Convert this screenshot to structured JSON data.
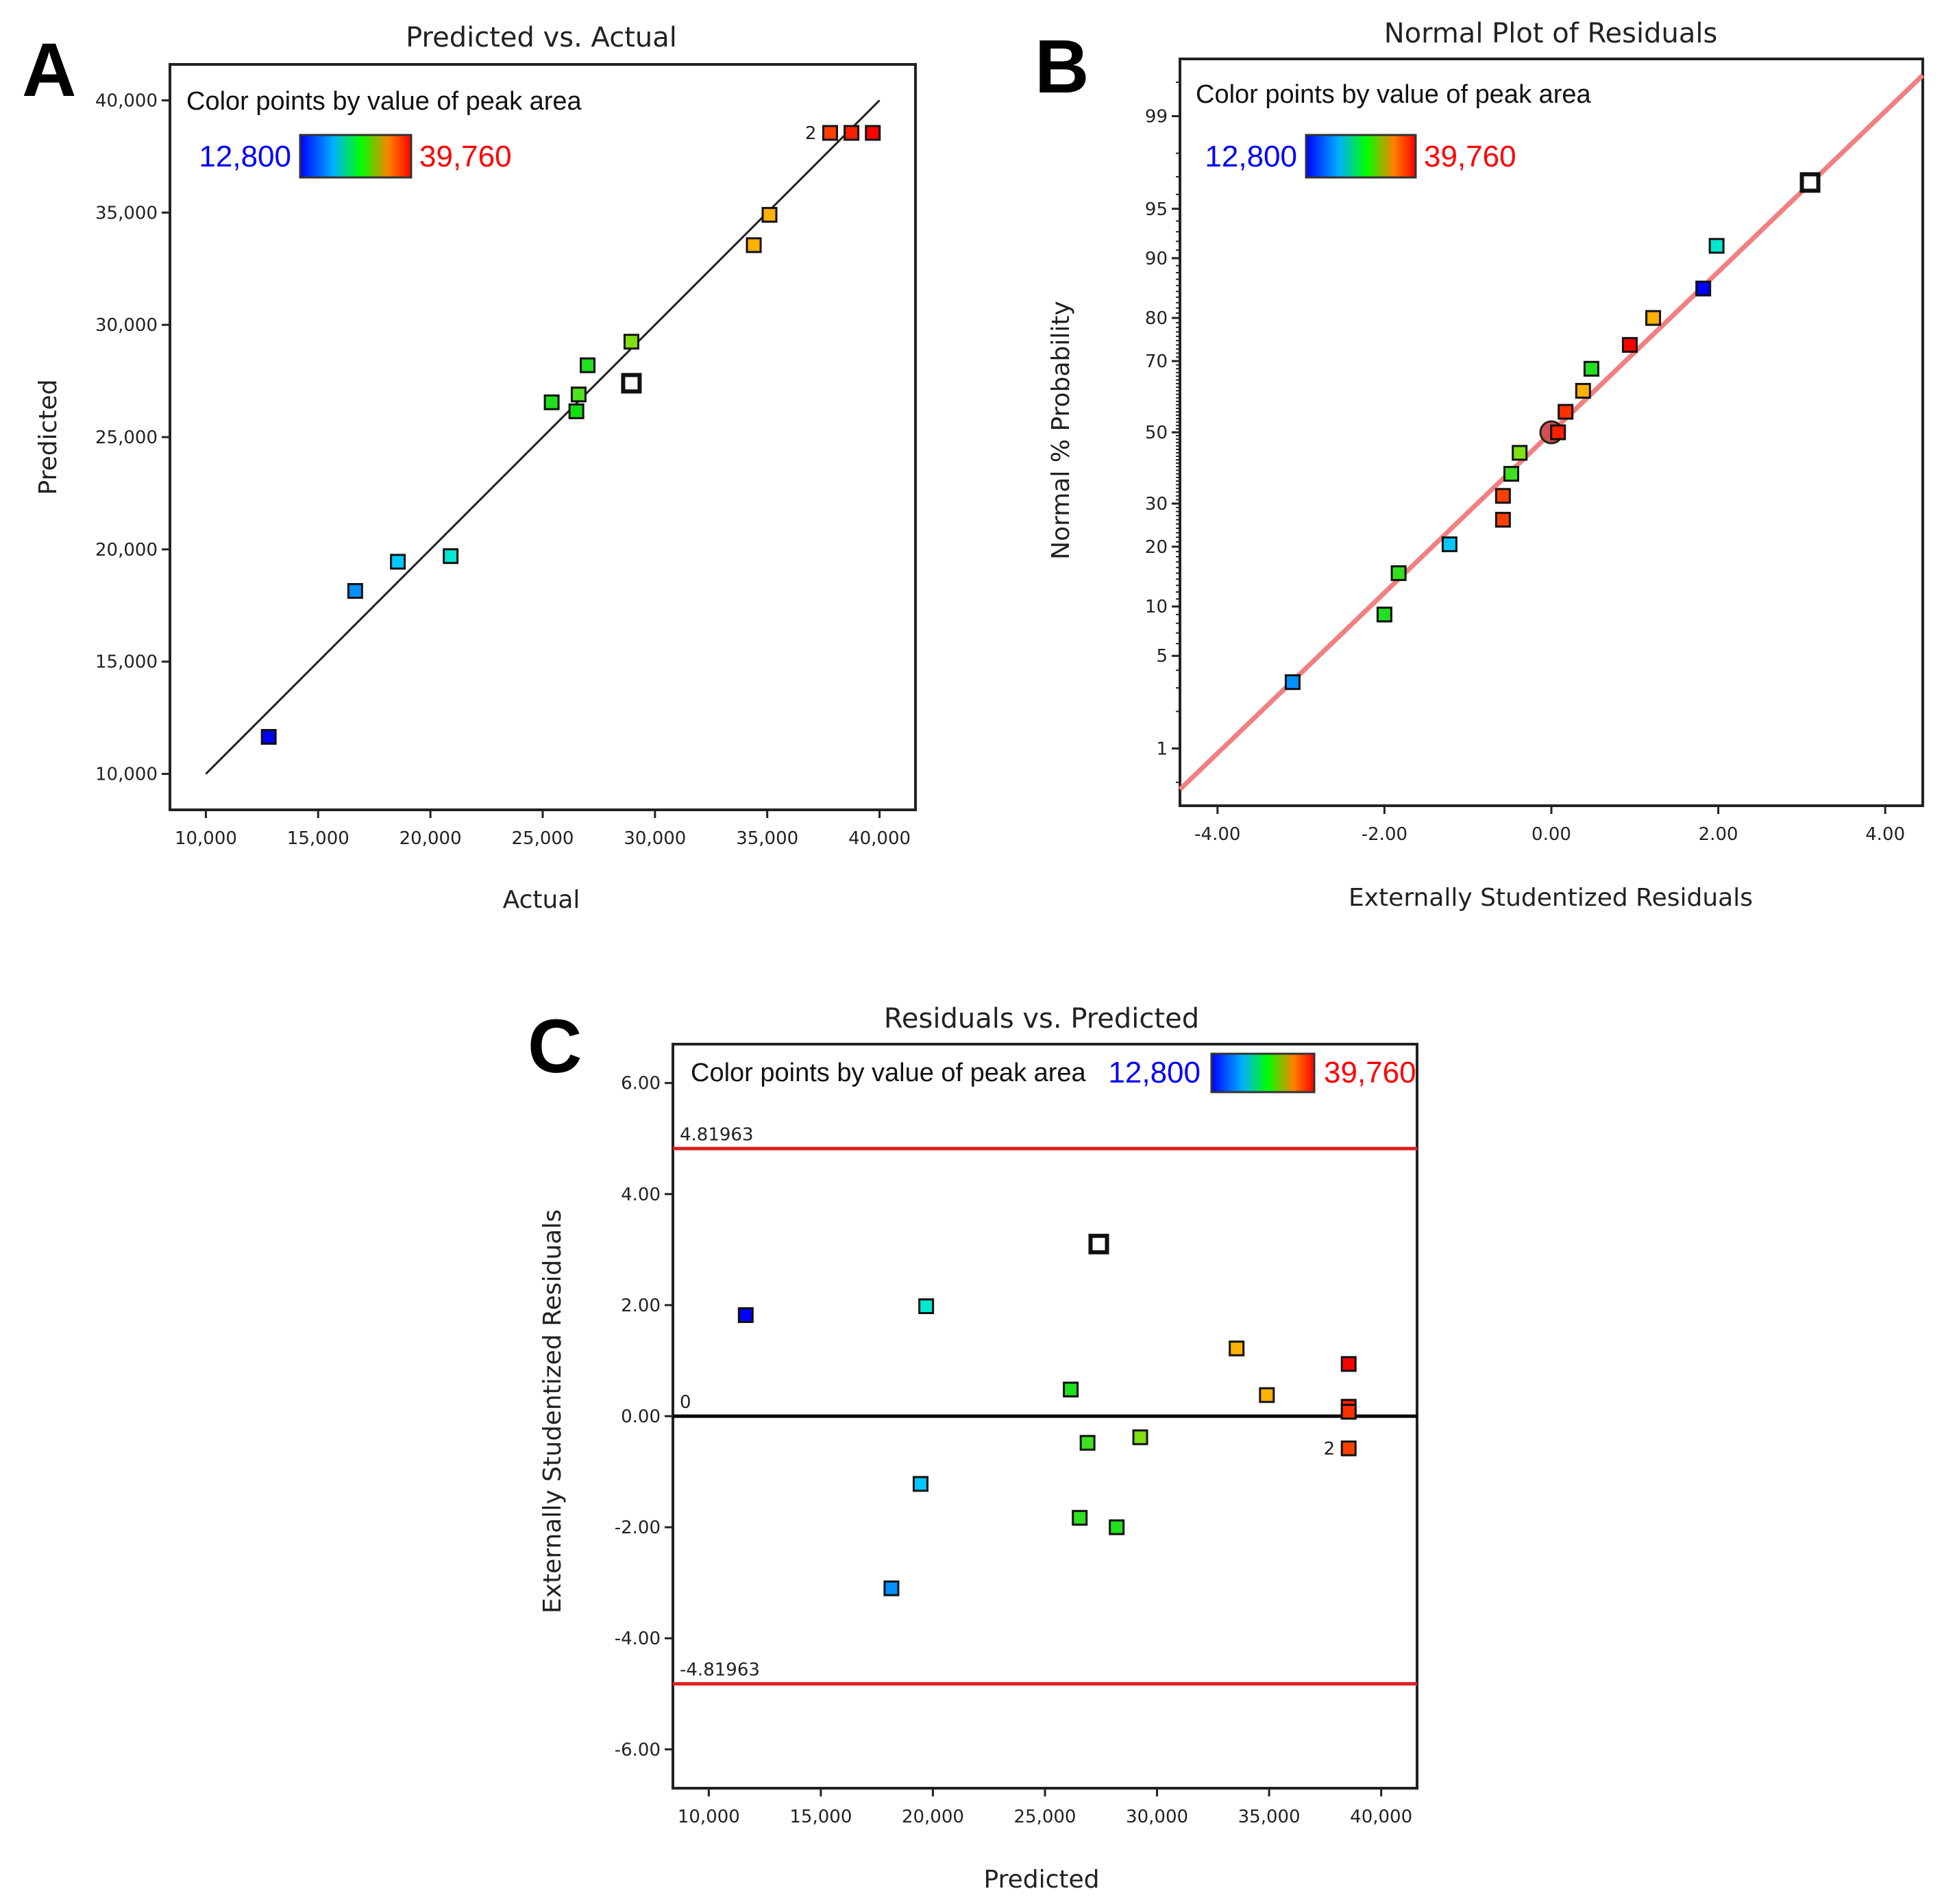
{
  "colors": {
    "frame": "#222222",
    "fitline": "#222222",
    "normal_line": "#f08080",
    "limit_line": "#e02020",
    "zero_line": "#000000"
  },
  "legend": {
    "text": "Color points by value of peak area",
    "min": "12,800",
    "max": "39,760",
    "gradient": [
      "#0000ff",
      "#00b0ff",
      "#00ff00",
      "#ff8000",
      "#ff0000"
    ]
  },
  "chart_data": [
    {
      "id": "A",
      "panel_label": "A",
      "type": "scatter",
      "title": "Predicted vs. Actual",
      "xlabel": "Actual",
      "ylabel": "Predicted",
      "xlim": [
        8400,
        41600
      ],
      "ylim": [
        8400,
        41600
      ],
      "xticks": [
        10000,
        15000,
        20000,
        25000,
        30000,
        35000,
        40000
      ],
      "xtick_labels": [
        "10,000",
        "15,000",
        "20,000",
        "25,000",
        "30,000",
        "35,000",
        "40,000"
      ],
      "yticks": [
        10000,
        15000,
        20000,
        25000,
        30000,
        35000,
        40000
      ],
      "ytick_labels": [
        "10,000",
        "15,000",
        "20,000",
        "25,000",
        "30,000",
        "35,000",
        "40,000"
      ],
      "fit_line": {
        "x": [
          10000,
          40000
        ],
        "y": [
          10000,
          40000
        ]
      },
      "points": [
        {
          "x": 12800,
          "y": 11650,
          "color": "#0000ff"
        },
        {
          "x": 16650,
          "y": 18150,
          "color": "#0090ff"
        },
        {
          "x": 18550,
          "y": 19450,
          "color": "#00c8ff"
        },
        {
          "x": 20900,
          "y": 19700,
          "color": "#00e8d0"
        },
        {
          "x": 25400,
          "y": 26550,
          "color": "#20e020"
        },
        {
          "x": 26600,
          "y": 26900,
          "color": "#50e020"
        },
        {
          "x": 26500,
          "y": 26150,
          "color": "#10e010"
        },
        {
          "x": 27000,
          "y": 28200,
          "color": "#20e020"
        },
        {
          "x": 28950,
          "y": 29250,
          "color": "#80e010"
        },
        {
          "x": 28950,
          "y": 27400,
          "color": "#ffffff",
          "hollow": true
        },
        {
          "x": 34400,
          "y": 33550,
          "color": "#ffb000"
        },
        {
          "x": 35100,
          "y": 34900,
          "color": "#ffb000"
        },
        {
          "x": 37800,
          "y": 38550,
          "color": "#ff4000",
          "label": "2"
        },
        {
          "x": 38750,
          "y": 38550,
          "color": "#ff2000"
        },
        {
          "x": 39700,
          "y": 38550,
          "color": "#ff0000"
        }
      ]
    },
    {
      "id": "B",
      "panel_label": "B",
      "type": "scatter",
      "title": "Normal Plot of Residuals",
      "xlabel": "Externally Studentized Residuals",
      "ylabel": "Normal % Probability",
      "xlim": [
        -4.45,
        4.45
      ],
      "ylim": [
        0.3,
        99.7
      ],
      "yscale": "normal-probability",
      "xticks": [
        -4,
        -2,
        0,
        2,
        4
      ],
      "xtick_labels": [
        "-4.00",
        "-2.00",
        "0.00",
        "2.00",
        "4.00"
      ],
      "yticks": [
        1,
        5,
        10,
        20,
        30,
        50,
        70,
        80,
        90,
        95,
        99
      ],
      "ytick_labels": [
        "1",
        "5",
        "10",
        "20",
        "30",
        "50",
        "70",
        "80",
        "90",
        "95",
        "99"
      ],
      "ref_line": {
        "x": [
          -4.45,
          4.45
        ],
        "y": [
          0.43,
          99.57
        ]
      },
      "points": [
        {
          "x": -3.1,
          "y": 3.3,
          "color": "#0090ff"
        },
        {
          "x": -2.0,
          "y": 9.0,
          "color": "#20e020"
        },
        {
          "x": -1.83,
          "y": 15.0,
          "color": "#30e020"
        },
        {
          "x": -1.22,
          "y": 20.5,
          "color": "#00c8ff"
        },
        {
          "x": -0.58,
          "y": 26.0,
          "color": "#ff4000"
        },
        {
          "x": -0.58,
          "y": 32.0,
          "color": "#ff4000"
        },
        {
          "x": -0.48,
          "y": 38.0,
          "color": "#40e020"
        },
        {
          "x": -0.38,
          "y": 44.0,
          "color": "#80e010"
        },
        {
          "x": 0.0,
          "y": 50.0,
          "color": "#d05050",
          "circle": true
        },
        {
          "x": 0.08,
          "y": 50.0,
          "color": "#ff2000"
        },
        {
          "x": 0.17,
          "y": 56.0,
          "color": "#ff3000"
        },
        {
          "x": 0.38,
          "y": 62.0,
          "color": "#ffb000"
        },
        {
          "x": 0.48,
          "y": 68.0,
          "color": "#20e020"
        },
        {
          "x": 0.94,
          "y": 74.0,
          "color": "#ff0000"
        },
        {
          "x": 1.22,
          "y": 80.0,
          "color": "#ffb000"
        },
        {
          "x": 1.82,
          "y": 85.5,
          "color": "#0000ff"
        },
        {
          "x": 1.98,
          "y": 91.5,
          "color": "#00e8d0"
        },
        {
          "x": 3.1,
          "y": 96.7,
          "color": "#ffffff",
          "hollow": true
        }
      ]
    },
    {
      "id": "C",
      "panel_label": "C",
      "type": "scatter",
      "title": "Residuals vs. Predicted",
      "xlabel": "Predicted",
      "ylabel": "Externally Studentized Residuals",
      "xlim": [
        8400,
        41600
      ],
      "ylim": [
        -6.7,
        6.7
      ],
      "xticks": [
        10000,
        15000,
        20000,
        25000,
        30000,
        35000,
        40000
      ],
      "xtick_labels": [
        "10,000",
        "15,000",
        "20,000",
        "25,000",
        "30,000",
        "35,000",
        "40,000"
      ],
      "yticks": [
        -6,
        -4,
        -2,
        0,
        2,
        4,
        6
      ],
      "ytick_labels": [
        "-6.00",
        "-4.00",
        "-2.00",
        "0.00",
        "2.00",
        "4.00",
        "6.00"
      ],
      "limit_upper": 4.81963,
      "limit_upper_label": "4.81963",
      "limit_lower": -4.81963,
      "limit_lower_label": "-4.81963",
      "zero_label": "0",
      "points": [
        {
          "x": 11650,
          "y": 1.82,
          "color": "#0000ff"
        },
        {
          "x": 19700,
          "y": 1.98,
          "color": "#00e8d0"
        },
        {
          "x": 27400,
          "y": 3.1,
          "color": "#ffffff",
          "hollow": true
        },
        {
          "x": 33550,
          "y": 1.22,
          "color": "#ffb000"
        },
        {
          "x": 38550,
          "y": 0.94,
          "color": "#ff0000"
        },
        {
          "x": 26150,
          "y": 0.48,
          "color": "#20e020"
        },
        {
          "x": 34900,
          "y": 0.38,
          "color": "#ffb000"
        },
        {
          "x": 38550,
          "y": 0.17,
          "color": "#ff2000"
        },
        {
          "x": 38550,
          "y": 0.08,
          "color": "#ff3000"
        },
        {
          "x": 26900,
          "y": -0.48,
          "color": "#40e020"
        },
        {
          "x": 29250,
          "y": -0.38,
          "color": "#80e010"
        },
        {
          "x": 38550,
          "y": -0.58,
          "color": "#ff4000",
          "label": "2"
        },
        {
          "x": 19450,
          "y": -1.22,
          "color": "#00c8ff"
        },
        {
          "x": 26550,
          "y": -1.83,
          "color": "#30e020"
        },
        {
          "x": 28200,
          "y": -2.0,
          "color": "#20e020"
        },
        {
          "x": 18150,
          "y": -3.1,
          "color": "#0090ff"
        }
      ]
    }
  ]
}
